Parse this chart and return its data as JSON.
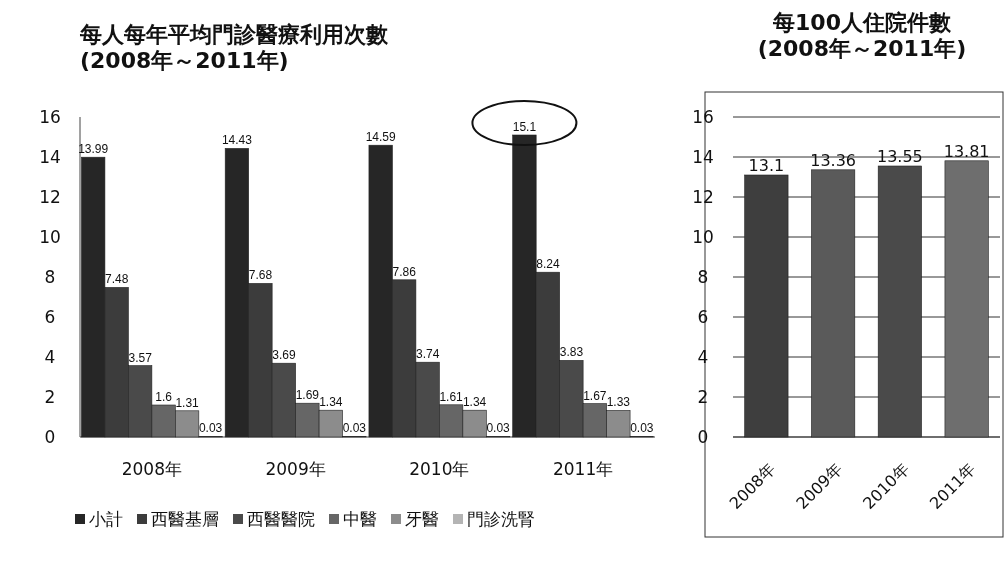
{
  "chart_data": [
    {
      "type": "bar",
      "title": "每人每年平均門診醫療利用次數\n(2008年～2011年)",
      "categories": [
        "2008年",
        "2009年",
        "2010年",
        "2011年"
      ],
      "series": [
        {
          "name": "小計",
          "color": "#262626",
          "values": [
            13.99,
            14.43,
            14.59,
            15.1
          ]
        },
        {
          "name": "西醫基層",
          "color": "#3c3c3c",
          "values": [
            7.48,
            7.68,
            7.86,
            8.24
          ]
        },
        {
          "name": "西醫醫院",
          "color": "#4a4a4a",
          "values": [
            3.57,
            3.69,
            3.74,
            3.83
          ]
        },
        {
          "name": "中醫",
          "color": "#666666",
          "values": [
            1.6,
            1.69,
            1.61,
            1.67
          ]
        },
        {
          "name": "牙醫",
          "color": "#8c8c8c",
          "values": [
            1.31,
            1.34,
            1.34,
            1.33
          ]
        },
        {
          "name": "門診洗腎",
          "color": "#b4b4b4",
          "values": [
            0.03,
            0.03,
            0.03,
            0.03
          ]
        }
      ],
      "ylim": [
        0,
        16
      ],
      "yticks": [
        0,
        2,
        4,
        6,
        8,
        10,
        12,
        14,
        16
      ],
      "data_labels": true,
      "legend": "bottom",
      "grid": false
    },
    {
      "type": "bar",
      "title": "每100人住院件數\n(2008年～2011年)",
      "categories": [
        "2008年",
        "2009年",
        "2010年",
        "2011年"
      ],
      "values": [
        13.1,
        13.36,
        13.55,
        13.81
      ],
      "colors": [
        "#3e3e3e",
        "#5a5a5a",
        "#4a4a4a",
        "#6e6e6e"
      ],
      "ylim": [
        0,
        16
      ],
      "yticks": [
        0,
        2,
        4,
        6,
        8,
        10,
        12,
        14,
        16
      ],
      "data_labels": true,
      "grid": "y"
    }
  ]
}
